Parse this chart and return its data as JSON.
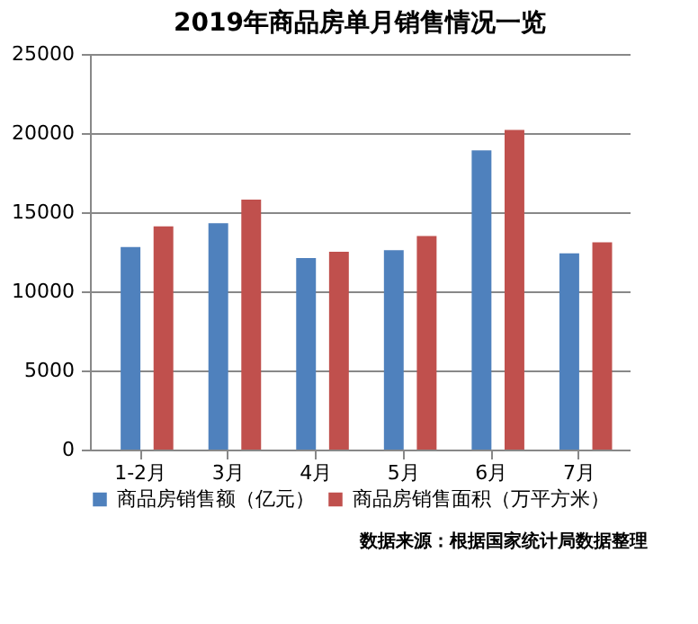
{
  "chart_data": {
    "type": "bar",
    "title": "2019年商品房单月销售情况一览",
    "categories": [
      "1-2月",
      "3月",
      "4月",
      "5月",
      "6月",
      "7月"
    ],
    "series": [
      {
        "name": "商品房销售额（亿元）",
        "color": "#4f81bd",
        "values": [
          12800,
          14300,
          12100,
          12600,
          18900,
          12400
        ]
      },
      {
        "name": "商品房销售面积（万平方米）",
        "color": "#c0504d",
        "values": [
          14100,
          15800,
          12500,
          13500,
          20200,
          13100
        ]
      }
    ],
    "ylim": [
      0,
      25000
    ],
    "yticks": [
      0,
      5000,
      10000,
      15000,
      20000,
      25000
    ],
    "grid": "y",
    "legend": "bottom",
    "annotations": [
      "数据来源：根据国家统计局数据整理"
    ]
  }
}
